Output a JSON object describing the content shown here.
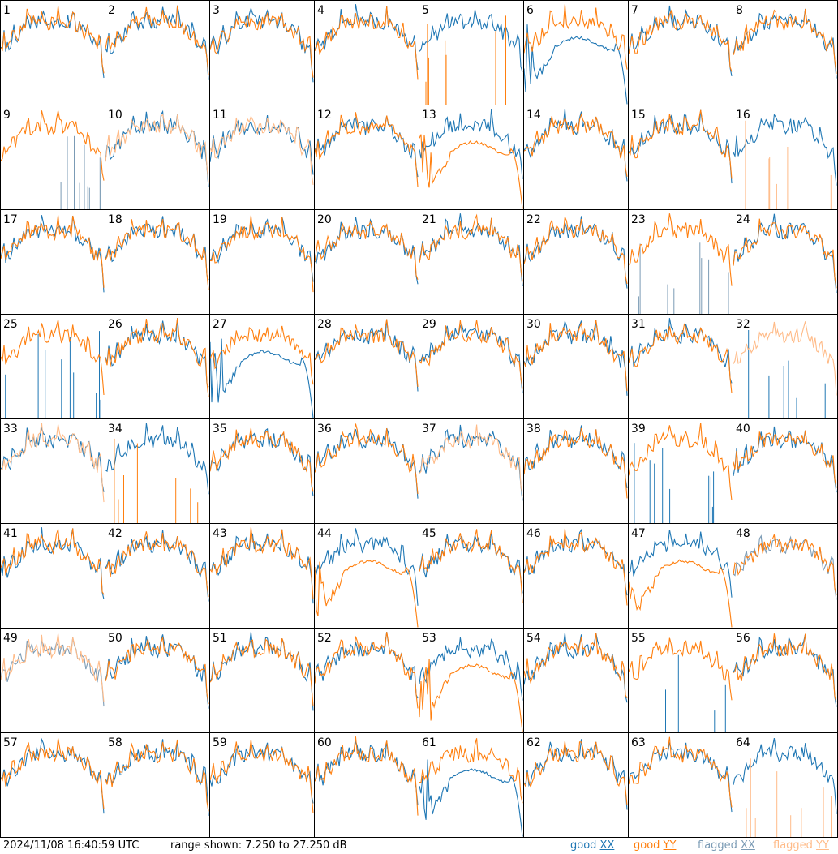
{
  "chart_data": {
    "type": "line",
    "layout": "8x8 grid of per-input spectra",
    "panel_labels": [
      "1",
      "2",
      "3",
      "4",
      "5",
      "6",
      "7",
      "8",
      "9",
      "10",
      "11",
      "12",
      "13",
      "14",
      "15",
      "16",
      "17",
      "18",
      "19",
      "20",
      "21",
      "22",
      "23",
      "24",
      "25",
      "26",
      "27",
      "28",
      "29",
      "30",
      "31",
      "32",
      "33",
      "34",
      "35",
      "36",
      "37",
      "38",
      "39",
      "40",
      "41",
      "42",
      "43",
      "44",
      "45",
      "46",
      "47",
      "48",
      "49",
      "50",
      "51",
      "52",
      "53",
      "54",
      "55",
      "56",
      "57",
      "58",
      "59",
      "60",
      "61",
      "62",
      "63",
      "64"
    ],
    "ylim": [
      7.25,
      27.25
    ],
    "yunit": "dB",
    "series_types": [
      "good XX",
      "good YY",
      "flagged XX",
      "flagged YY"
    ],
    "colors": {
      "good_xx": "#1f77b4",
      "good_yy": "#ff7f0e",
      "flagged_xx": "#7b9bb5",
      "flagged_yy": "#ffbb88"
    },
    "panel_styles": {
      "1": {
        "xx": "good",
        "yy": "good"
      },
      "5": {
        "xx": "good",
        "yy": "spikes"
      },
      "6": {
        "xx": "decay",
        "yy": "good"
      },
      "9": {
        "xx": "flagged-spikes",
        "yy": "good"
      },
      "10": {
        "xx": "good",
        "yy": "flagged"
      },
      "11": {
        "xx": "good",
        "yy": "flagged"
      },
      "13": {
        "xx": "good",
        "yy": "decay"
      },
      "16": {
        "xx": "good",
        "yy": "flagged-spikes"
      },
      "23": {
        "xx": "flagged-spikes",
        "yy": "good"
      },
      "25": {
        "xx": "spikes",
        "yy": "good"
      },
      "27": {
        "xx": "decay",
        "yy": "good"
      },
      "32": {
        "xx": "spikes",
        "yy": "flagged"
      },
      "33": {
        "xx": "good",
        "yy": "flagged"
      },
      "34": {
        "xx": "good",
        "yy": "spikes"
      },
      "37": {
        "xx": "good",
        "yy": "flagged"
      },
      "39": {
        "xx": "spikes",
        "yy": "good"
      },
      "44": {
        "xx": "good",
        "yy": "decay"
      },
      "47": {
        "xx": "good",
        "yy": "decay"
      },
      "48": {
        "xx": "flagged",
        "yy": "good"
      },
      "49": {
        "xx": "flagged",
        "yy": "flagged"
      },
      "53": {
        "xx": "good",
        "yy": "decay"
      },
      "55": {
        "xx": "spikes",
        "yy": "good"
      },
      "61": {
        "xx": "decay",
        "yy": "good"
      },
      "64": {
        "xx": "good",
        "yy": "flagged-spikes"
      }
    }
  },
  "footer": {
    "timestamp": "2024/11/08 16:40:59 UTC",
    "range_text": "range shown: 7.250 to 27.250 dB",
    "legend": {
      "good_xx_prefix": "good ",
      "good_xx_pol": "XX",
      "good_yy_prefix": "good ",
      "good_yy_pol": "YY",
      "flagged_xx_prefix": "flagged ",
      "flagged_xx_pol": "XX",
      "flagged_yy_prefix": "flagged ",
      "flagged_yy_pol": "YY"
    }
  }
}
